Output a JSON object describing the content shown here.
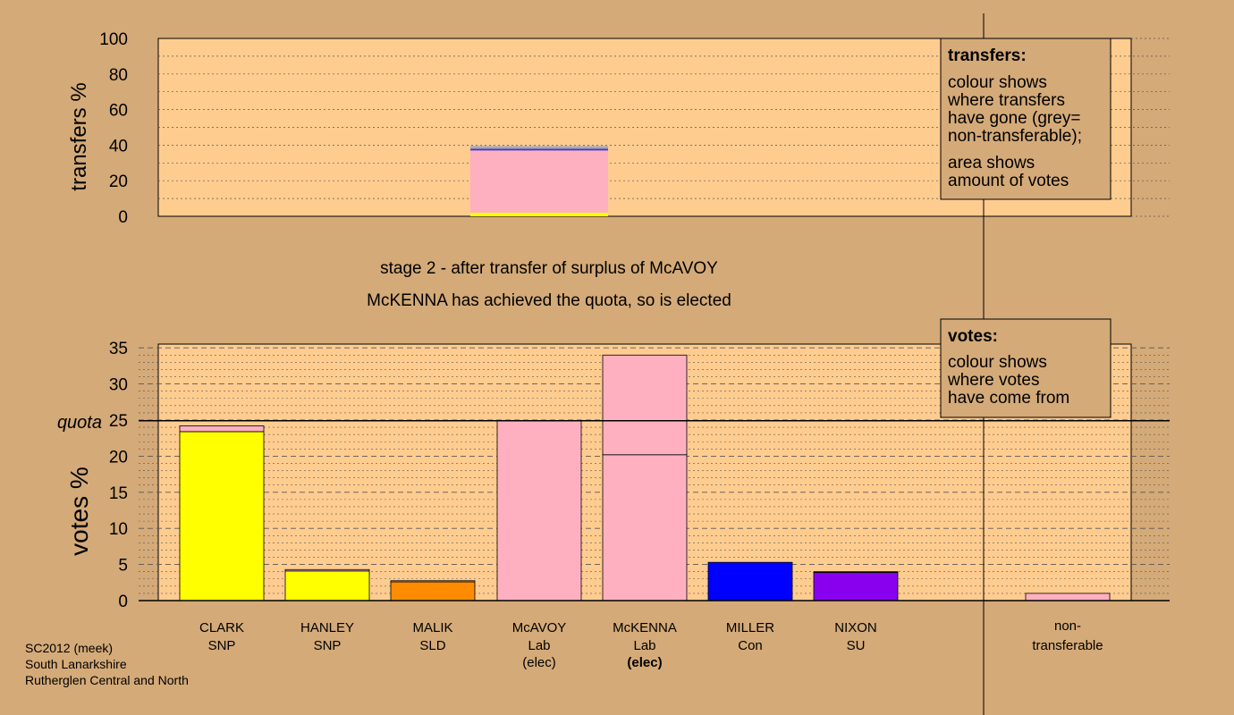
{
  "chart_data": {
    "type": "bar",
    "stage_title": "stage 2 - after transfer of surplus of McAVOY",
    "status_message": "McKENNA has achieved the quota, so is elected",
    "transfers_panel": {
      "ylabel": "transfers %",
      "ylim": [
        0,
        100
      ],
      "yticks": [
        0,
        20,
        40,
        60,
        80,
        100
      ],
      "bar_column": 3,
      "segments": [
        {
          "from": 0,
          "to": 2,
          "color": "#ffff00"
        },
        {
          "from": 2,
          "to": 37,
          "color": "#ffb0c0"
        },
        {
          "from": 37,
          "to": 38,
          "color": "#3a3ad0"
        },
        {
          "from": 38,
          "to": 39.5,
          "color": "#a8a8b8"
        }
      ],
      "legend": {
        "heading": "transfers:",
        "text1": [
          "colour shows",
          "where transfers",
          "have gone (grey=",
          "non-transferable);"
        ],
        "text2": [
          "area shows",
          "amount of votes"
        ]
      }
    },
    "votes_panel": {
      "ylabel": "votes %",
      "ylim": [
        0,
        35
      ],
      "yticks": [
        0,
        5,
        10,
        15,
        20,
        25,
        30,
        35
      ],
      "quota": 24.9,
      "quota_label": "quota",
      "legend": {
        "heading": "votes:",
        "text1": [
          "colour shows",
          "where votes",
          "have come from"
        ]
      },
      "candidates": [
        {
          "name": "CLARK",
          "party": "SNP",
          "elected": "",
          "color": "#ffff00",
          "segments": [
            {
              "value": 23.4,
              "color": "#ffff00"
            },
            {
              "value": 0.8,
              "color": "#ffb0c0"
            }
          ]
        },
        {
          "name": "HANLEY",
          "party": "SNP",
          "elected": "",
          "color": "#ffff00",
          "segments": [
            {
              "value": 4.1,
              "color": "#ffff00"
            },
            {
              "value": 0.2,
              "color": "#ffb0c0"
            }
          ]
        },
        {
          "name": "MALIK",
          "party": "SLD",
          "elected": "",
          "color": "#ff8c00",
          "segments": [
            {
              "value": 2.6,
              "color": "#ff8c00"
            },
            {
              "value": 0.15,
              "color": "#ffb0c0"
            }
          ]
        },
        {
          "name": "McAVOY",
          "party": "Lab",
          "elected": "(elec)",
          "color": "#ffb0c0",
          "segments": [
            {
              "value": 24.9,
              "color": "#ffb0c0"
            }
          ]
        },
        {
          "name": "McKENNA",
          "party": "Lab",
          "elected": "(elec)",
          "color": "#ffb0c0",
          "segments": [
            {
              "value": 20.2,
              "color": "#ffb0c0"
            },
            {
              "value": 13.8,
              "color": "#ffb0c0"
            }
          ]
        },
        {
          "name": "MILLER",
          "party": "Con",
          "elected": "",
          "color": "#0000ff",
          "segments": [
            {
              "value": 5.3,
              "color": "#0000ff"
            }
          ]
        },
        {
          "name": "NIXON",
          "party": "SU",
          "elected": "",
          "color": "#8800ee",
          "segments": [
            {
              "value": 3.9,
              "color": "#8800ee"
            },
            {
              "value": 0.1,
              "color": "#ffb0c0"
            }
          ]
        }
      ],
      "nontransferable": {
        "label1": "non-",
        "label2": "transferable",
        "value": 1.0,
        "color": "#ffb0c0"
      }
    }
  },
  "footer": {
    "line1": "SC2012 (meek)",
    "line2": "South Lanarkshire",
    "line3": "Rutherglen Central and North"
  }
}
